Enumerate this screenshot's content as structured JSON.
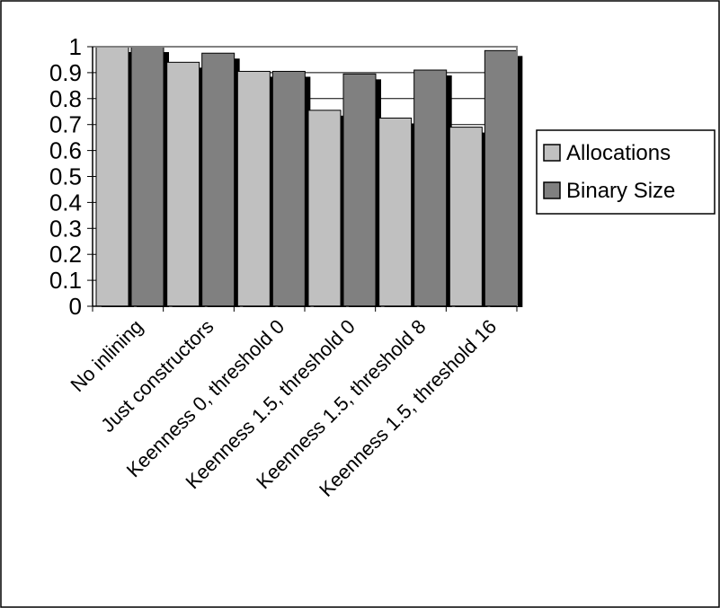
{
  "chart_data": {
    "type": "bar",
    "title": "",
    "xlabel": "",
    "ylabel": "",
    "ylim": [
      0,
      1
    ],
    "y_ticks": [
      "0",
      "0.1",
      "0.2",
      "0.3",
      "0.4",
      "0.5",
      "0.6",
      "0.7",
      "0.8",
      "0.9",
      "1"
    ],
    "categories": [
      "No inlining",
      "Just constructors",
      "Keenness 0, threshold 0",
      "Keenness 1.5, threshold 0",
      "Keenness 1.5, threshold 8",
      "Keenness 1.5, threshold 16"
    ],
    "series": [
      {
        "name": "Allocations",
        "color": "#c0c0c0",
        "values": [
          1.0,
          0.94,
          0.905,
          0.755,
          0.725,
          0.69
        ]
      },
      {
        "name": "Binary Size",
        "color": "#808080",
        "values": [
          1.0,
          0.975,
          0.905,
          0.895,
          0.91,
          0.985
        ]
      }
    ],
    "grid": true,
    "legend_position": "right"
  }
}
